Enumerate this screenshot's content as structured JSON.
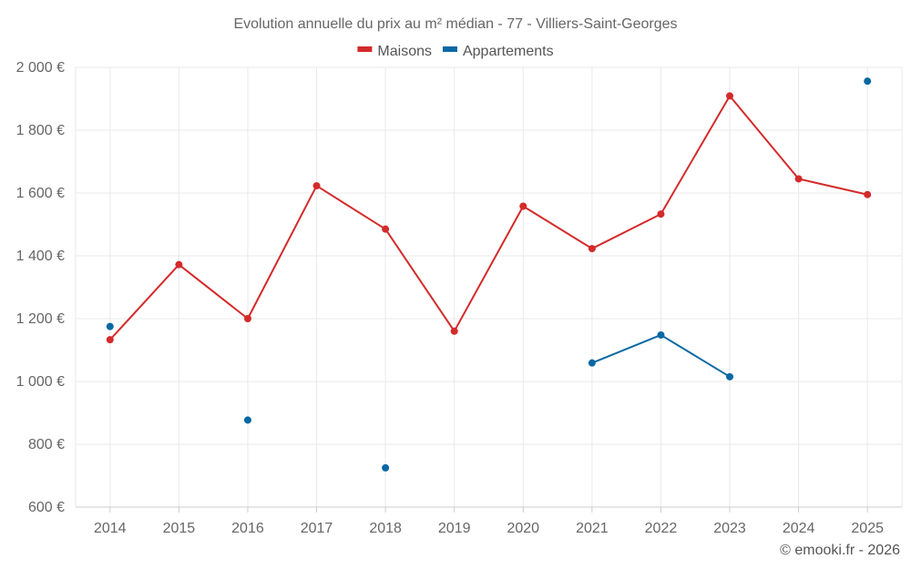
{
  "chart_data": {
    "type": "line",
    "title": "Evolution annuelle du prix au m² médian - 77 - Villiers-Saint-Georges",
    "categories": [
      "2014",
      "2015",
      "2016",
      "2017",
      "2018",
      "2019",
      "2020",
      "2021",
      "2022",
      "2023",
      "2024",
      "2025"
    ],
    "series": [
      {
        "name": "Maisons",
        "color": "#d42a2a",
        "values": [
          1133,
          1372,
          1200,
          1623,
          1485,
          1160,
          1558,
          1423,
          1533,
          1909,
          1645,
          1595
        ]
      },
      {
        "name": "Appartements",
        "color": "#0868a3",
        "values": [
          1175,
          null,
          877,
          null,
          725,
          null,
          null,
          1059,
          1148,
          1015,
          null,
          1956
        ]
      }
    ],
    "ylim": [
      600,
      2000
    ],
    "yticks": [
      600,
      800,
      1000,
      1200,
      1400,
      1600,
      1800,
      2000
    ],
    "ytick_labels": [
      "600 €",
      "800 €",
      "1 000 €",
      "1 200 €",
      "1 400 €",
      "1 600 €",
      "1 800 €",
      "2 000 €"
    ],
    "xlabel": "",
    "ylabel": "",
    "grid": true,
    "legend_position": "top-center"
  },
  "credit": "© emooki.fr - 2026"
}
